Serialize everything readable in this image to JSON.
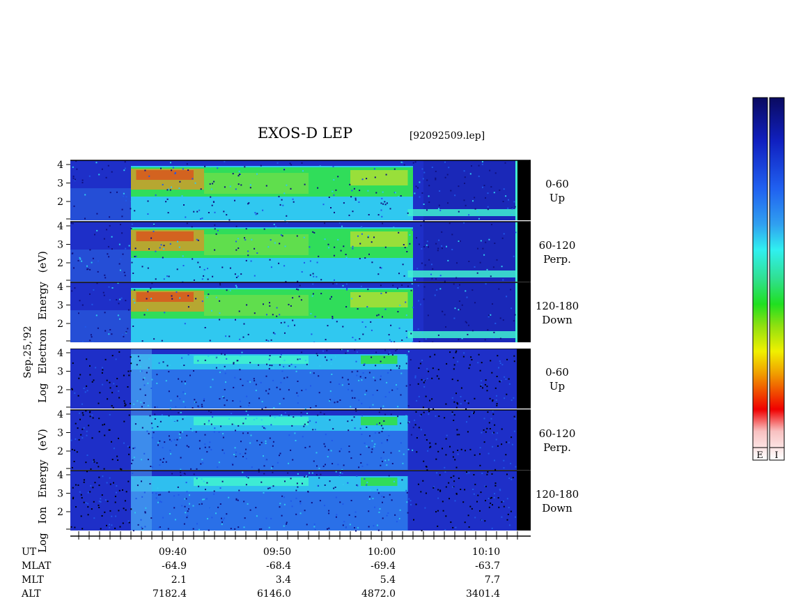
{
  "title": "EXOS-D LEP",
  "file_label": "[92092509.lep]",
  "date_label": "Sep.25,'92",
  "colorbar_labels": [
    "E",
    "I"
  ],
  "electron_axis_label": [
    "Log",
    "Electron",
    "Energy",
    "(eV)"
  ],
  "ion_axis_label": [
    "Log",
    "Ion",
    "Energy",
    "(eV)"
  ],
  "pitch_angle_labels": [
    {
      "range": "0-60",
      "dir": "Up"
    },
    {
      "range": "60-120",
      "dir": "Perp."
    },
    {
      "range": "120-180",
      "dir": "Down"
    }
  ],
  "y_ticks": [
    "4",
    "3",
    "2"
  ],
  "colors": {
    "background": "#1e2fc8",
    "data_gap": "#000000",
    "colorbar": [
      "#0a0a60",
      "#1020c0",
      "#2060f0",
      "#30a0f0",
      "#30f0f0",
      "#30e090",
      "#20e020",
      "#90e010",
      "#f0f000",
      "#f0a000",
      "#f04000",
      "#f00000",
      "#f8c0c0",
      "#ffffff"
    ]
  },
  "chart_data": {
    "type": "heatmap",
    "xlabel": "UT",
    "ylabel": "Log Energy (eV)",
    "ylim": [
      1,
      4
    ],
    "x_ticks": [
      "09:40",
      "09:50",
      "10:00",
      "10:10"
    ],
    "orbit_rows": [
      {
        "name": "UT",
        "values": [
          "09:40",
          "09:50",
          "10:00",
          "10:10"
        ]
      },
      {
        "name": "MLAT",
        "values": [
          "-64.9",
          "-68.4",
          "-69.4",
          "-63.7"
        ]
      },
      {
        "name": "MLT",
        "values": [
          "2.1",
          "3.4",
          "5.4",
          "7.7"
        ]
      },
      {
        "name": "ALT",
        "values": [
          "7182.4",
          "6146.0",
          "4872.0",
          "3401.4"
        ]
      }
    ],
    "panels": [
      {
        "species": "Electron",
        "pitch": "0-60",
        "dir": "Up"
      },
      {
        "species": "Electron",
        "pitch": "60-120",
        "dir": "Perp."
      },
      {
        "species": "Electron",
        "pitch": "120-180",
        "dir": "Down"
      },
      {
        "species": "Ion",
        "pitch": "0-60",
        "dir": "Up"
      },
      {
        "species": "Ion",
        "pitch": "60-120",
        "dir": "Perp."
      },
      {
        "species": "Ion",
        "pitch": "120-180",
        "dir": "Down"
      }
    ]
  }
}
